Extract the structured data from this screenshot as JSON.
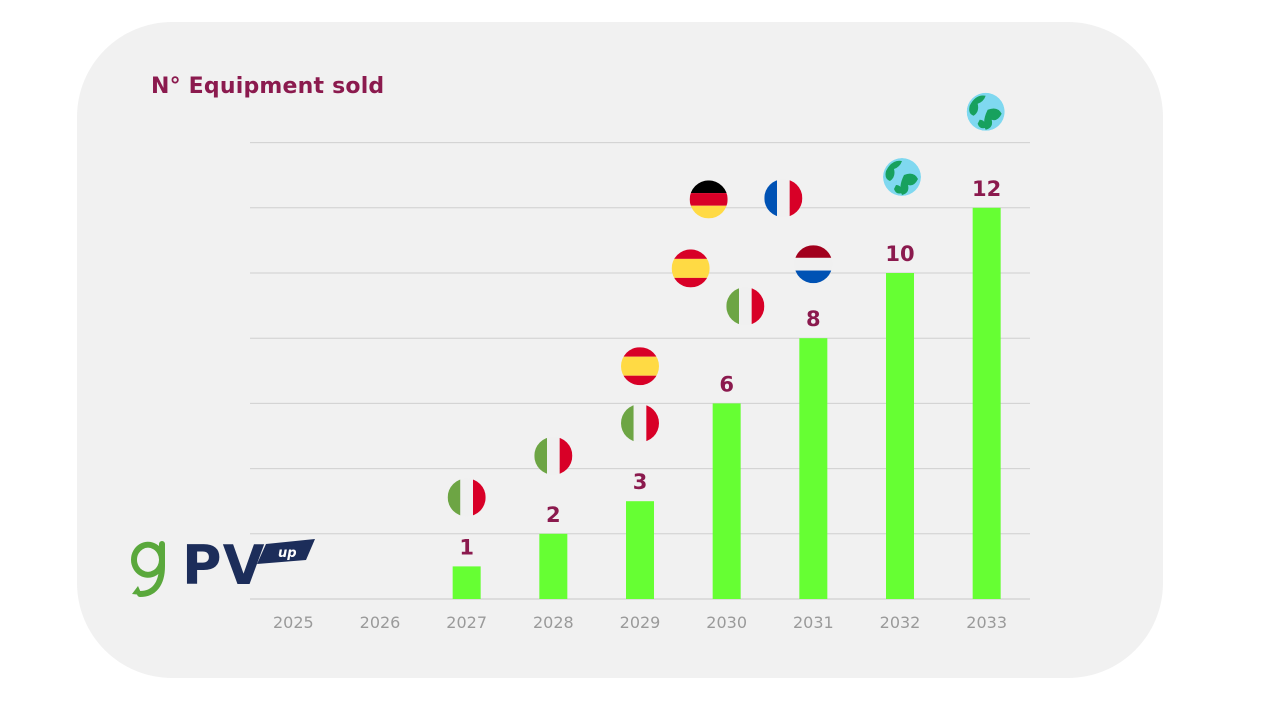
{
  "colors": {
    "accent": "#8b1a4e",
    "bar": "#66ff33",
    "grid": "#d0d0d0",
    "tick": "#9a9a9a",
    "logo_green": "#5aa83c",
    "logo_navy": "#1c2d5a"
  },
  "logo": {
    "brand": "PV",
    "superscript": "up"
  },
  "chart_data": {
    "type": "bar",
    "title": "N° Equipment sold",
    "xlabel": "",
    "ylabel": "",
    "grid": true,
    "legend": "none",
    "ylim": [
      0,
      14
    ],
    "categories": [
      "2025",
      "2026",
      "2027",
      "2028",
      "2029",
      "2030",
      "2031",
      "2032",
      "2033"
    ],
    "values": [
      0,
      0,
      1,
      2,
      3,
      6,
      8,
      10,
      12
    ],
    "data_labels": [
      "",
      "",
      "1",
      "2",
      "3",
      "6",
      "8",
      "10",
      "12"
    ],
    "markets": [
      [],
      [],
      [
        "italy-flag-icon"
      ],
      [
        "italy-flag-icon"
      ],
      [
        "italy-flag-icon",
        "spain-flag-icon"
      ],
      [
        "spain-flag-icon",
        "germany-flag-icon"
      ],
      [
        "italy-flag-icon",
        "netherlands-flag-icon",
        "france-flag-icon"
      ],
      [
        "globe-icon"
      ],
      [
        "globe-icon"
      ]
    ]
  }
}
